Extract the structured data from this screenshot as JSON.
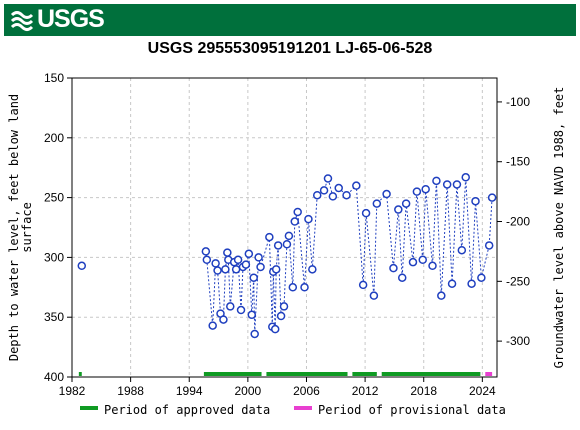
{
  "header": {
    "logo_text": "USGS"
  },
  "chart_data": {
    "type": "scatter",
    "title": "USGS 295553095191201 LJ-65-06-528",
    "xlabel": "",
    "ylabel": "Depth to water level, feet below land surface",
    "ylabel_lines": [
      "Depth to water level, feet below land",
      "surface"
    ],
    "y2label": "Groundwater level above NAVD 1988, feet",
    "xlim": [
      1982,
      2025.5
    ],
    "ylim": [
      400,
      150
    ],
    "y_inverted": true,
    "y2lim": [
      -330,
      -80
    ],
    "x_ticks": [
      "1982",
      "1988",
      "1994",
      "2000",
      "2006",
      "2012",
      "2018",
      "2024"
    ],
    "y_ticks": [
      "150",
      "200",
      "250",
      "300",
      "350",
      "400"
    ],
    "y2_ticks": [
      "-100",
      "-150",
      "-200",
      "-250",
      "-300"
    ],
    "grid": true,
    "series": [
      {
        "color": "#1f3fbf",
        "marker": "open-circle",
        "connected_from_index": 1,
        "points": [
          [
            1983.0,
            307
          ],
          [
            1995.7,
            295
          ],
          [
            1995.8,
            302
          ],
          [
            1996.4,
            357
          ],
          [
            1996.7,
            305
          ],
          [
            1996.9,
            311
          ],
          [
            1997.2,
            347
          ],
          [
            1997.5,
            352
          ],
          [
            1997.7,
            310
          ],
          [
            1997.9,
            296
          ],
          [
            1998.0,
            302
          ],
          [
            1998.2,
            341
          ],
          [
            1998.6,
            304
          ],
          [
            1998.8,
            310
          ],
          [
            1999.0,
            302
          ],
          [
            1999.3,
            344
          ],
          [
            1999.5,
            308
          ],
          [
            1999.8,
            306
          ],
          [
            2000.1,
            297
          ],
          [
            2000.4,
            348
          ],
          [
            2000.6,
            317
          ],
          [
            2000.7,
            364
          ],
          [
            2001.1,
            300
          ],
          [
            2001.3,
            308
          ],
          [
            2002.2,
            283
          ],
          [
            2002.5,
            358
          ],
          [
            2002.6,
            312
          ],
          [
            2002.8,
            360
          ],
          [
            2002.9,
            310
          ],
          [
            2003.1,
            290
          ],
          [
            2003.4,
            349
          ],
          [
            2003.7,
            341
          ],
          [
            2004.0,
            289
          ],
          [
            2004.2,
            282
          ],
          [
            2004.6,
            325
          ],
          [
            2004.8,
            270
          ],
          [
            2005.1,
            262
          ],
          [
            2005.8,
            325
          ],
          [
            2006.2,
            268
          ],
          [
            2006.6,
            310
          ],
          [
            2007.1,
            248
          ],
          [
            2007.8,
            244
          ],
          [
            2008.2,
            234
          ],
          [
            2008.7,
            249
          ],
          [
            2009.3,
            242
          ],
          [
            2010.1,
            248
          ],
          [
            2011.1,
            240
          ],
          [
            2011.8,
            323
          ],
          [
            2012.1,
            263
          ],
          [
            2012.9,
            332
          ],
          [
            2013.2,
            255
          ],
          [
            2014.2,
            247
          ],
          [
            2014.9,
            309
          ],
          [
            2015.4,
            260
          ],
          [
            2015.8,
            317
          ],
          [
            2016.2,
            255
          ],
          [
            2016.9,
            304
          ],
          [
            2017.3,
            245
          ],
          [
            2017.9,
            302
          ],
          [
            2018.2,
            243
          ],
          [
            2018.9,
            307
          ],
          [
            2019.3,
            236
          ],
          [
            2019.8,
            332
          ],
          [
            2020.4,
            239
          ],
          [
            2020.9,
            322
          ],
          [
            2021.4,
            239
          ],
          [
            2021.9,
            294
          ],
          [
            2022.3,
            233
          ],
          [
            2022.9,
            322
          ],
          [
            2023.3,
            253
          ],
          [
            2023.9,
            317
          ],
          [
            2024.7,
            290
          ],
          [
            2025.0,
            250
          ]
        ]
      }
    ],
    "approved_periods": [
      [
        1982.7,
        1983.0
      ],
      [
        1995.5,
        2001.4
      ],
      [
        2001.9,
        2010.2
      ],
      [
        2010.7,
        2013.2
      ],
      [
        2013.7,
        2023.8
      ]
    ],
    "provisional_periods": [
      [
        2024.3,
        2025.0
      ]
    ],
    "colors": {
      "approved": "#0f9b23",
      "provisional": "#e83fd0",
      "grid": "#c8c8c8"
    },
    "legend": {
      "placement": "bottom",
      "approved_label": "Period of approved data",
      "provisional_label": "Period of provisional data"
    }
  }
}
